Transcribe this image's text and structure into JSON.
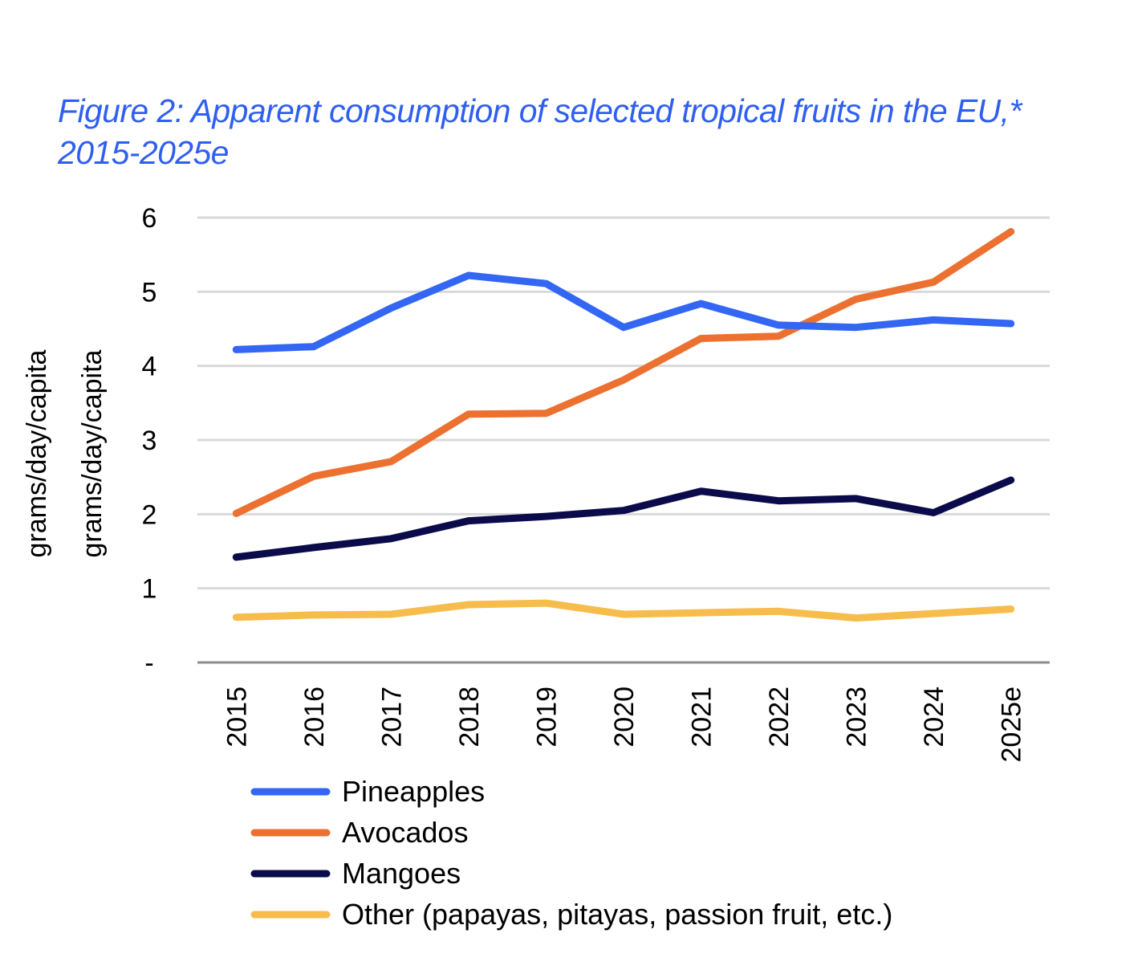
{
  "title": "Figure 2: Apparent consumption of selected tropical fruits in the EU,* 2015-2025e",
  "colors": {
    "title": "#2f5ff0",
    "grid": "#d9d9d9",
    "axis": "#8c8c8c"
  },
  "chart_data": {
    "type": "line",
    "title": "Figure 2: Apparent consumption of selected tropical fruits in the EU,* 2015-2025e",
    "ylabel": "grams/day/capita",
    "ylabel_repeated": "grams/day/capita",
    "xlabel": "",
    "ylim": [
      0,
      6
    ],
    "yticks": [
      {
        "value": 0,
        "label": "-"
      },
      {
        "value": 1,
        "label": "1"
      },
      {
        "value": 2,
        "label": "2"
      },
      {
        "value": 3,
        "label": "3"
      },
      {
        "value": 4,
        "label": "4"
      },
      {
        "value": 5,
        "label": "5"
      },
      {
        "value": 6,
        "label": "6"
      }
    ],
    "categories": [
      "2015",
      "2016",
      "2017",
      "2018",
      "2019",
      "2020",
      "2021",
      "2022",
      "2023",
      "2024",
      "2025e"
    ],
    "grid": true,
    "legend_position": "bottom",
    "series": [
      {
        "name": "Pineapples",
        "color": "#3366f2",
        "values": [
          4.22,
          4.26,
          4.78,
          5.22,
          5.11,
          4.52,
          4.84,
          4.55,
          4.52,
          4.62,
          4.57
        ]
      },
      {
        "name": "Avocados",
        "color": "#ec7130",
        "values": [
          2.01,
          2.51,
          2.71,
          3.35,
          3.36,
          3.81,
          4.37,
          4.4,
          4.9,
          5.13,
          5.81
        ]
      },
      {
        "name": "Mangoes",
        "color": "#0b0b4b",
        "values": [
          1.42,
          1.55,
          1.67,
          1.91,
          1.97,
          2.05,
          2.31,
          2.18,
          2.21,
          2.02,
          2.46
        ]
      },
      {
        "name": "Other (papayas, pitayas, passion fruit, etc.)",
        "color": "#f7bd4c",
        "values": [
          0.61,
          0.64,
          0.65,
          0.78,
          0.8,
          0.65,
          0.67,
          0.69,
          0.6,
          0.66,
          0.72
        ]
      }
    ]
  }
}
